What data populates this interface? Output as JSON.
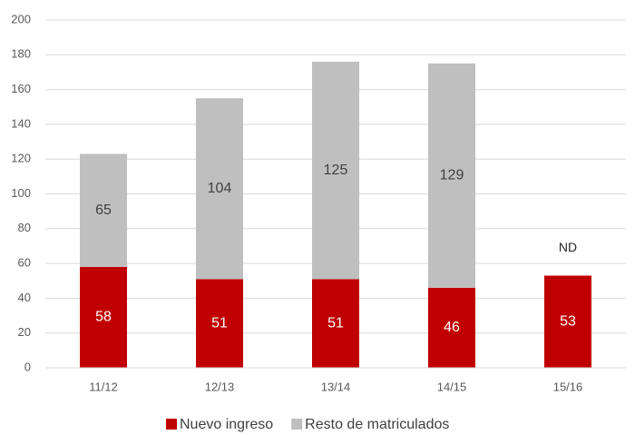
{
  "chart_data": {
    "type": "stacked_bar",
    "categories": [
      "11/12",
      "12/13",
      "13/14",
      "14/15",
      "15/16"
    ],
    "series": [
      {
        "name": "Nuevo ingreso",
        "color": "#c00000",
        "values": [
          58,
          51,
          51,
          46,
          53
        ]
      },
      {
        "name": "Resto de matriculados",
        "color": "#bfbfbf",
        "values": [
          65,
          104,
          125,
          129,
          null
        ],
        "value_labels": [
          "65",
          "104",
          "125",
          "129",
          "ND"
        ]
      }
    ],
    "ylim": [
      0,
      200
    ],
    "yticks": [
      0,
      20,
      40,
      60,
      80,
      100,
      120,
      140,
      160,
      180,
      200
    ],
    "grid": true,
    "legend": "bottom"
  }
}
